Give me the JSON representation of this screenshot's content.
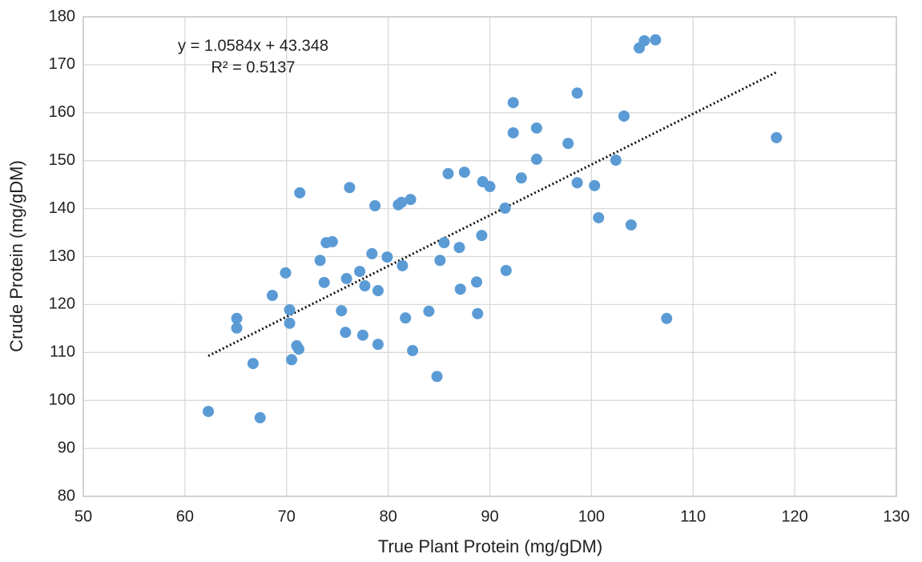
{
  "chart_data": {
    "type": "scatter",
    "x_label": "True Plant Protein (mg/gDM)",
    "y_label": "Crude Protein (mg/gDM)",
    "color": "#5b9bd5",
    "grid": true,
    "xlim": [
      50,
      130
    ],
    "xticks": [
      50,
      60,
      70,
      80,
      90,
      100,
      110,
      120,
      130
    ],
    "ylim": [
      80,
      180
    ],
    "yticks": [
      80,
      90,
      100,
      110,
      120,
      130,
      140,
      150,
      160,
      170,
      180
    ],
    "trendline": {
      "equation": "y = 1.0584x + 43.348",
      "r_squared": "R² = 0.5137",
      "slope": 1.0584,
      "intercept": 43.348
    },
    "x": [
      62.3,
      67.4,
      66.7,
      65.1,
      65.1,
      68.6,
      69.9,
      70.3,
      70.3,
      70.5,
      71.0,
      71.2,
      71.3,
      73.3,
      73.7,
      73.9,
      74.5,
      75.4,
      75.9,
      75.8,
      76.2,
      77.2,
      77.7,
      77.5,
      78.4,
      78.7,
      79.0,
      79.0,
      79.9,
      81.0,
      81.3,
      81.4,
      81.7,
      82.2,
      82.4,
      84.0,
      84.8,
      85.1,
      85.5,
      85.9,
      87.0,
      87.1,
      87.5,
      88.7,
      88.8,
      89.2,
      89.3,
      90.0,
      91.5,
      91.6,
      92.3,
      92.3,
      93.1,
      94.6,
      94.6,
      97.7,
      98.6,
      98.6,
      100.3,
      100.7,
      102.4,
      103.2,
      103.9,
      104.7,
      105.2,
      106.3,
      107.4,
      118.2
    ],
    "y": [
      97.7,
      96.4,
      107.7,
      117.1,
      115.1,
      121.9,
      126.6,
      118.9,
      116.1,
      108.5,
      111.4,
      110.7,
      143.3,
      129.2,
      124.6,
      132.9,
      133.1,
      118.7,
      125.4,
      114.2,
      144.4,
      126.9,
      123.9,
      113.6,
      130.6,
      140.6,
      122.9,
      111.7,
      129.9,
      140.8,
      141.3,
      128.1,
      117.2,
      141.9,
      110.4,
      118.6,
      105.0,
      129.2,
      132.9,
      147.3,
      131.9,
      123.2,
      147.6,
      124.7,
      118.1,
      134.4,
      145.6,
      144.6,
      140.1,
      127.1,
      162.1,
      155.8,
      146.4,
      156.8,
      150.3,
      153.6,
      164.1,
      145.4,
      144.8,
      138.1,
      150.1,
      159.3,
      136.6,
      173.5,
      175.0,
      175.2,
      117.1,
      154.8
    ]
  }
}
